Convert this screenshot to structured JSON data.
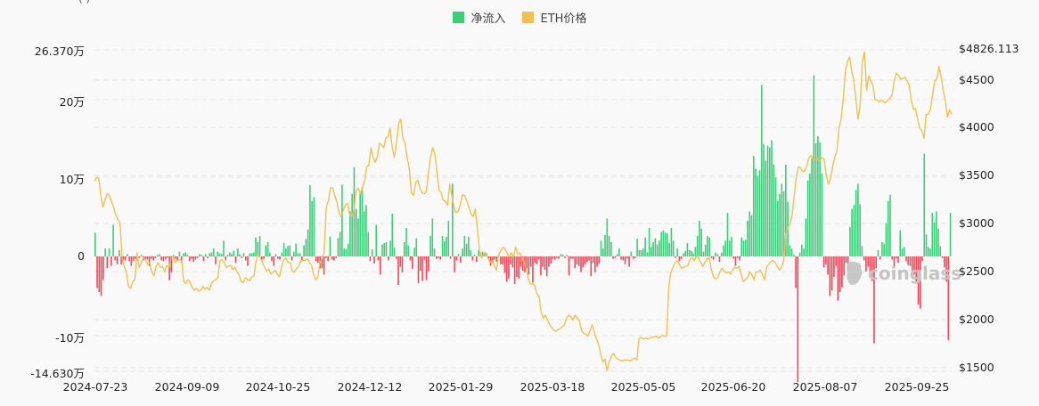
{
  "header": {
    "partial_text": "( )"
  },
  "legend": [
    {
      "label": "净流入",
      "color": "#3dce7a"
    },
    {
      "label": "ETH价格",
      "color": "#f0c050"
    }
  ],
  "watermark": {
    "text": "coinglass"
  },
  "left_axis": {
    "labels": [
      "26.370万",
      "20万",
      "10万",
      "0",
      "-10万",
      "-14.630万"
    ]
  },
  "right_axis": {
    "labels": [
      "$4826.113",
      "$4500",
      "$4000",
      "$3500",
      "$3000",
      "$2500",
      "$2000",
      "$1500"
    ]
  },
  "x_axis": {
    "labels": [
      "2024-07-23",
      "2024-09-09",
      "2024-10-25",
      "2024-12-12",
      "2025-01-29",
      "2025-03-18",
      "2025-05-05",
      "2025-06-20",
      "2025-08-07",
      "2025-09-25"
    ]
  },
  "colors": {
    "positive": "#3dce7a",
    "negative": "#f0485a",
    "price": "#f0c050",
    "grid": "#e6e6e6"
  },
  "chart_data": {
    "type": "bar+line",
    "title": "",
    "legend": [
      "净流入",
      "ETH价格"
    ],
    "legend_position": "top",
    "x_labels": [
      "2024-07-23",
      "2024-09-09",
      "2024-10-25",
      "2024-12-12",
      "2025-01-29",
      "2025-03-18",
      "2025-05-05",
      "2025-06-20",
      "2025-08-07",
      "2025-09-25"
    ],
    "left_axis": {
      "label": "净流入",
      "unit": "万",
      "ylim": [
        -14.63,
        26.37
      ],
      "ticks": [
        -14.63,
        -10,
        0,
        10,
        20,
        26.37
      ]
    },
    "right_axis": {
      "label": "ETH价格",
      "unit": "USD",
      "ylim": [
        1500,
        4826.113
      ],
      "ticks": [
        1500,
        2000,
        2500,
        3000,
        3500,
        4000,
        4500,
        4826.113
      ]
    },
    "grid": true,
    "series": [
      {
        "name": "净流入",
        "type": "bar",
        "unit": "万",
        "values": [
          3.0,
          -4.0,
          -4.5,
          -5.0,
          -3.0,
          1.0,
          -1.5,
          1.0,
          -1.2,
          4.0,
          -0.5,
          -1.0,
          0.8,
          -1.0,
          -0.4,
          -0.5,
          0.3,
          -0.6,
          -1.2,
          -0.6,
          -0.3,
          -0.5,
          -0.2,
          0.2,
          -0.5,
          -0.3,
          -0.4,
          -1.2,
          -0.3,
          -0.5,
          -0.2,
          0.2,
          0.3,
          -0.5,
          -0.6,
          -0.4,
          -0.2,
          -3.0,
          -2.0,
          0.2,
          -0.3,
          -0.5,
          0.6,
          -0.8,
          0.4,
          0.5,
          0.2,
          -0.6,
          -0.3,
          -0.7,
          -0.4,
          -0.2,
          0.3,
          0.2,
          -0.6,
          0.3,
          -0.2,
          0.4,
          0.5,
          1.0,
          -1.0,
          0.6,
          0.4,
          0.3,
          2.0,
          -0.5,
          0.2,
          0.5,
          0.3,
          0.7,
          -0.8,
          1.0,
          0.3,
          -0.2,
          0.4,
          -0.5,
          -1.2,
          0.4,
          0.4,
          0.5,
          2.4,
          1.8,
          2.6,
          -0.5,
          -0.3,
          1.4,
          1.8,
          0.5,
          -0.6,
          -1.2,
          0.3,
          -0.3,
          -0.4,
          0.5,
          1.7,
          1.0,
          1.3,
          1.4,
          -0.5,
          0.6,
          1.6,
          0.4,
          0.4,
          -0.5,
          1.4,
          2.2,
          3.4,
          9.0,
          7.0,
          7.5,
          -0.6,
          -0.8,
          -1.5,
          -1.5,
          -2.3,
          -0.2,
          -0.6,
          2.5,
          -0.4,
          -0.5,
          -0.2,
          2.3,
          3.1,
          9.1,
          1.0,
          0.9,
          1.6,
          5.7,
          7.9,
          11.3,
          6.0,
          4.8,
          8.0,
          8.8,
          5.7,
          6.5,
          3.1,
          -0.6,
          0.9,
          -0.9,
          4.0,
          -0.5,
          -2.3,
          1.5,
          1.7,
          1.8,
          -0.5,
          2.0,
          5.4,
          1.1,
          -0.3,
          -3.6,
          -1.3,
          -2.0,
          1.8,
          3.6,
          1.4,
          -0.5,
          -1.6,
          1.1,
          2.3,
          -3.4,
          -1.8,
          -3.1,
          -0.4,
          -3.0,
          -1.9,
          2.6,
          4.8,
          1.0,
          -0.3,
          -0.2,
          -0.4,
          2.6,
          1.9,
          2.5,
          4.5,
          -0.3,
          9.2,
          -2.0,
          -0.5,
          0.3,
          -0.8,
          1.0,
          2.6,
          1.6,
          2.5,
          0.8,
          -0.5,
          0.2,
          -0.7,
          0.8,
          0.5,
          0.6,
          0.5,
          0.4,
          -0.3,
          -1.2,
          -0.8,
          -0.4,
          -0.7,
          0.2,
          -1.0,
          -1.0,
          -2.1,
          -3.2,
          -2.8,
          -1.0,
          -1.4,
          -3.5,
          -2.6,
          -2.8,
          -1.3,
          -1.8,
          -2.0,
          -1.5,
          -2.3,
          -1.3,
          -3.3,
          -0.8,
          -1.0,
          -0.4,
          -2.4,
          -1.3,
          -1.7,
          -2.5,
          -1.3,
          -0.9,
          -0.3,
          -0.4,
          -0.2,
          -0.3,
          0.3,
          0.2,
          -0.2,
          0.2,
          -2.4,
          -0.3,
          -0.3,
          -1.5,
          -1.0,
          -1.2,
          -2.0,
          -1.4,
          -1.0,
          -0.7,
          -0.5,
          -2.5,
          -0.8,
          -2.0,
          -1.3,
          -0.9,
          2.0,
          1.0,
          2.7,
          4.8,
          2.6,
          1.8,
          -0.3,
          -0.2,
          0.3,
          1.0,
          -0.4,
          -0.5,
          -1.0,
          -0.3,
          -1.3,
          0.6,
          -0.3,
          -0.2,
          2.2,
          0.8,
          0.8,
          1.0,
          2.4,
          0.5,
          3.6,
          1.2,
          1.8,
          2.3,
          1.5,
          2.0,
          3.1,
          3.3,
          3.0,
          2.9,
          1.7,
          3.6,
          2.0,
          -0.2,
          1.0,
          -0.6,
          -0.3,
          0.4,
          0.7,
          1.7,
          0.8,
          0.7,
          0.4,
          1.2,
          2.6,
          4.5,
          3.5,
          0.6,
          1.5,
          2.6,
          2.4,
          -0.2,
          -0.4,
          0.5,
          0.3,
          -0.7,
          0.5,
          1.4,
          2.0,
          5.5,
          2.0,
          2.5,
          -0.3,
          -1.2,
          -0.2,
          -0.5,
          2.4,
          2.0,
          2.1,
          4.5,
          5.7,
          5.2,
          12.7,
          11.1,
          10.2,
          10.9,
          21.7,
          14.2,
          12.1,
          14.0,
          13.8,
          14.7,
          11.6,
          10.0,
          7.0,
          7.9,
          9.2,
          8.2,
          11.6,
          6.9,
          1.4,
          1.0,
          0.2,
          -4.0,
          -15.9,
          0.5,
          1.5,
          1.0,
          4.8,
          9.6,
          10.5,
          12.4,
          22.9,
          14.3,
          15.2,
          14.4,
          10.5,
          -1.4,
          -1.0,
          -2.3,
          -5.0,
          -4.3,
          -2.6,
          -1.2,
          -5.6,
          -4.5,
          -3.9,
          -2.4,
          -0.8,
          -1.8,
          3.7,
          6.0,
          6.5,
          8.4,
          9.2,
          6.6,
          1.3,
          -0.5,
          -1.9,
          -1.3,
          -2.4,
          -3.1,
          -11.0,
          -1.5,
          0.8,
          -0.4,
          1.8,
          1.6,
          4.2,
          7.0,
          7.8,
          -0.4,
          -1.2,
          -0.3,
          -0.8,
          3.3,
          1.0,
          1.2,
          -0.6,
          -1.1,
          -1.2,
          -2.0,
          -2.3,
          -3.4,
          -6.1,
          -6.6,
          -0.6,
          13.0,
          2.8,
          1.2,
          1.0,
          5.5,
          4.3,
          5.7,
          3.5,
          1.3,
          -0.2,
          -1.4,
          -3.2,
          -10.6,
          5.5
        ]
      },
      {
        "name": "ETH价格",
        "type": "line",
        "unit": "USD",
        "values": [
          3450,
          3490,
          3480,
          3300,
          3180,
          3260,
          3320,
          3300,
          3240,
          3180,
          3100,
          3050,
          3020,
          2650,
          2560,
          2500,
          2350,
          2330,
          2400,
          2420,
          2700,
          2550,
          2600,
          2650,
          2630,
          2580,
          2600,
          2500,
          2460,
          2560,
          2600,
          2550,
          2560,
          2500,
          2570,
          2550,
          2640,
          2660,
          2600,
          2620,
          2630,
          2620,
          2400,
          2380,
          2420,
          2390,
          2340,
          2310,
          2330,
          2300,
          2310,
          2350,
          2320,
          2340,
          2310,
          2380,
          2410,
          2420,
          2440,
          2620,
          2630,
          2600,
          2550,
          2560,
          2570,
          2530,
          2550,
          2500,
          2470,
          2400,
          2390,
          2440,
          2420,
          2410,
          2450,
          2460,
          2620,
          2680,
          2650,
          2600,
          2550,
          2510,
          2530,
          2480,
          2500,
          2520,
          2480,
          2450,
          2560,
          2630,
          2650,
          2600,
          2600,
          2510,
          2500,
          2540,
          2560,
          2620,
          2620,
          2620,
          2640,
          2600,
          2580,
          2480,
          2420,
          2440,
          2600,
          2650,
          2700,
          3180,
          3250,
          3380,
          3380,
          3300,
          3230,
          3120,
          3080,
          3150,
          3200,
          3220,
          3100,
          3080,
          3150,
          3350,
          3380,
          3320,
          3380,
          3450,
          3600,
          3620,
          3800,
          3700,
          3650,
          3700,
          3850,
          3830,
          3800,
          3900,
          3920,
          4000,
          3800,
          3700,
          3850,
          4050,
          4100,
          3900,
          3850,
          3700,
          3580,
          3330,
          3300,
          3440,
          3460,
          3380,
          3330,
          3320,
          3340,
          3540,
          3700,
          3800,
          3740,
          3550,
          3360,
          3330,
          3250,
          3240,
          3200,
          3420,
          3300,
          3180,
          3120,
          3140,
          3200,
          3310,
          3300,
          3250,
          3180,
          3110,
          3080,
          3160,
          2960,
          2720,
          2650,
          2680,
          2700,
          2650,
          2600,
          2620,
          2570,
          2520,
          2680,
          2720,
          2760,
          2740,
          2700,
          2660,
          2700,
          2660,
          2760,
          2690,
          2700,
          2650,
          2600,
          2530,
          2430,
          2370,
          2380,
          2360,
          2270,
          2250,
          2080,
          2020,
          2050,
          2000,
          1950,
          1920,
          1890,
          1880,
          1900,
          1910,
          1930,
          1950,
          2020,
          2050,
          2030,
          2000,
          2050,
          2020,
          1990,
          1890,
          1860,
          1850,
          1830,
          1890,
          1950,
          1870,
          1800,
          1750,
          1640,
          1560,
          1590,
          1470,
          1560,
          1620,
          1650,
          1610,
          1590,
          1580,
          1570,
          1580,
          1580,
          1580,
          1570,
          1590,
          1600,
          1580,
          1800,
          1820,
          1800,
          1810,
          1800,
          1810,
          1820,
          1820,
          1830,
          1810,
          1820,
          1840,
          1830,
          1830,
          2350,
          2500,
          2550,
          2600,
          2620,
          2580,
          2540,
          2550,
          2560,
          2570,
          2630,
          2650,
          2620,
          2670,
          2650,
          2600,
          2560,
          2600,
          2640,
          2650,
          2530,
          2450,
          2430,
          2440,
          2500,
          2540,
          2510,
          2490,
          2500,
          2480,
          2520,
          2550,
          2540,
          2560,
          2480,
          2400,
          2420,
          2440,
          2500,
          2480,
          2420,
          2500,
          2500,
          2520,
          2480,
          2420,
          2550,
          2580,
          2610,
          2620,
          2600,
          2560,
          2520,
          2550,
          2610,
          2900,
          2970,
          3000,
          3100,
          3300,
          3500,
          3600,
          3590,
          3550,
          3560,
          3620,
          3700,
          3720,
          3670,
          3680,
          3690,
          3660,
          3700,
          3680,
          3520,
          3420,
          3470,
          3600,
          3700,
          3760,
          4000,
          4100,
          4300,
          4600,
          4700,
          4750,
          4600,
          4500,
          4300,
          4100,
          4250,
          4700,
          4800,
          4400,
          4550,
          4500,
          4450,
          4300,
          4300,
          4280,
          4300,
          4280,
          4270,
          4300,
          4320,
          4350,
          4500,
          4580,
          4560,
          4520,
          4520,
          4540,
          4500,
          4460,
          4300,
          4200,
          4210,
          4100,
          4000,
          3980,
          3900,
          4150,
          4150,
          4200,
          4350,
          4500,
          4520,
          4650,
          4550,
          4400,
          4300,
          4120,
          4200,
          4150
        ]
      }
    ]
  }
}
